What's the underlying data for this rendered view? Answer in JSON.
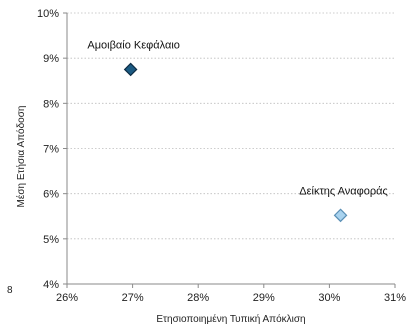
{
  "chart_data": {
    "type": "scatter",
    "xlabel": "Ετησιοποιημένη Τυπική Απόκλιση",
    "ylabel": "Μέση Ετήσια Απόδοση",
    "xlim": [
      26,
      31
    ],
    "ylim": [
      4,
      10
    ],
    "x_ticks": [
      "26%",
      "27%",
      "28%",
      "29%",
      "30%",
      "31%"
    ],
    "y_ticks": [
      "4%",
      "5%",
      "6%",
      "7%",
      "8%",
      "9%",
      "10%"
    ],
    "grid": "horizontal dotted",
    "points": [
      {
        "name": "Αμοιβαίο Κεφάλαιο",
        "x": 26.97,
        "y": 8.75,
        "color": "#1b5a82"
      },
      {
        "name": "Δείκτης Αναφοράς",
        "x": 30.17,
        "y": 5.52,
        "color": "#a9d3ef"
      }
    ]
  },
  "stray_label": "8"
}
